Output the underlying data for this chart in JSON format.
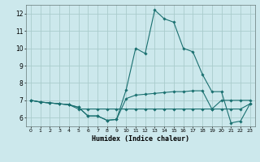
{
  "title": "",
  "xlabel": "Humidex (Indice chaleur)",
  "xlim": [
    -0.5,
    23.5
  ],
  "ylim": [
    5.5,
    12.5
  ],
  "yticks": [
    6,
    7,
    8,
    9,
    10,
    11,
    12
  ],
  "xticks": [
    0,
    1,
    2,
    3,
    4,
    5,
    6,
    7,
    8,
    9,
    10,
    11,
    12,
    13,
    14,
    15,
    16,
    17,
    18,
    19,
    20,
    21,
    22,
    23
  ],
  "background_color": "#cce8ec",
  "grid_color": "#aacccc",
  "line_color": "#1a7070",
  "lines": [
    [
      7.0,
      6.9,
      6.85,
      6.8,
      6.75,
      6.6,
      6.1,
      6.1,
      5.85,
      5.9,
      7.6,
      10.0,
      9.7,
      12.2,
      11.7,
      11.5,
      10.0,
      9.8,
      8.5,
      7.5,
      7.5,
      5.7,
      5.8,
      6.8
    ],
    [
      7.0,
      6.9,
      6.85,
      6.8,
      6.75,
      6.6,
      6.1,
      6.1,
      5.85,
      5.9,
      7.1,
      7.3,
      7.35,
      7.4,
      7.45,
      7.5,
      7.5,
      7.55,
      7.55,
      6.5,
      7.0,
      7.0,
      7.0,
      7.0
    ],
    [
      7.0,
      6.9,
      6.85,
      6.8,
      6.75,
      6.5,
      6.5,
      6.5,
      6.5,
      6.5,
      6.5,
      6.5,
      6.5,
      6.5,
      6.5,
      6.5,
      6.5,
      6.5,
      6.5,
      6.5,
      6.5,
      6.5,
      6.5,
      6.8
    ]
  ],
  "figsize": [
    3.2,
    2.0
  ],
  "dpi": 100
}
